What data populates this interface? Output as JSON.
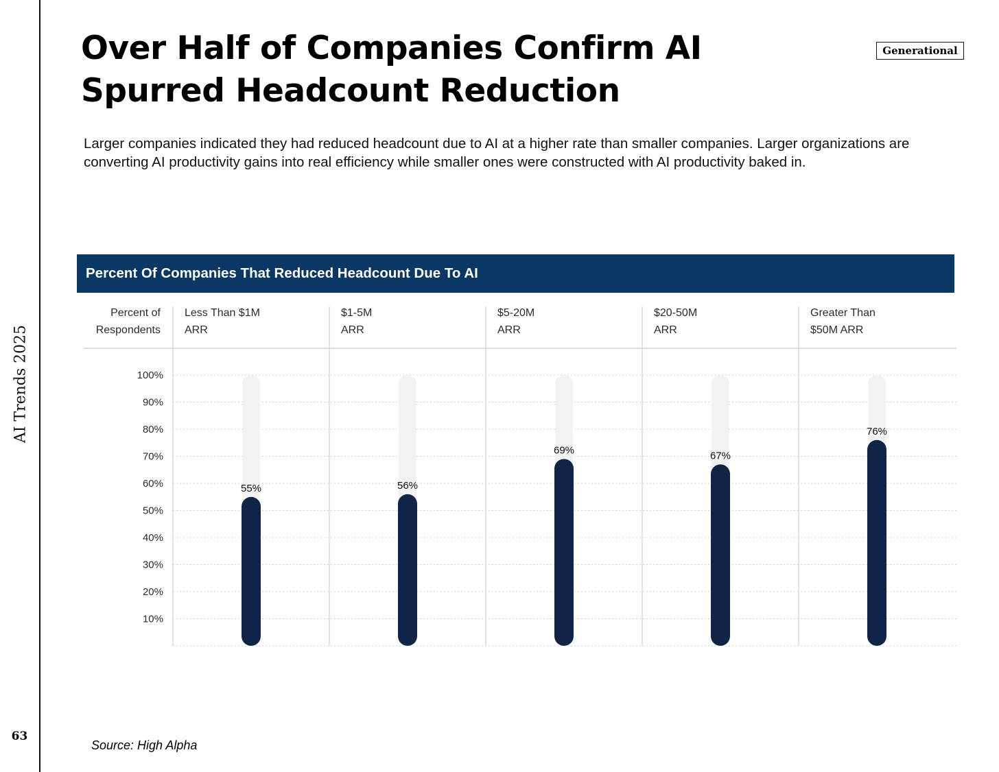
{
  "sidebar": {
    "label": "AI Trends 2025",
    "page_number": "63"
  },
  "badge": "Generational",
  "title": "Over Half of Companies Confirm AI Spurred Headcount Reduction",
  "subtitle": "Larger companies indicated they had reduced headcount due to AI at a higher rate than smaller companies. Larger organizations are converting AI productivity gains into real efficiency while smaller ones were constructed with AI productivity baked in.",
  "chart_header": "Percent Of Companies That Reduced Headcount Due To AI",
  "source": "Source: High Alpha",
  "colors": {
    "banner": "#0a3763",
    "bar": "#0f2447",
    "track": "#f2f2f2",
    "grid": "#cfcfcf"
  },
  "chart_data": {
    "type": "bar",
    "title": "Percent Of Companies That Reduced Headcount Due To AI",
    "y_header": [
      "Percent of",
      "Respondents"
    ],
    "categories": [
      [
        "Less Than $1M",
        "ARR"
      ],
      [
        "$1-5M",
        "ARR"
      ],
      [
        "$5-20M",
        "ARR"
      ],
      [
        "$20-50M",
        "ARR"
      ],
      [
        "Greater Than",
        "$50M ARR"
      ]
    ],
    "values": [
      55,
      56,
      69,
      67,
      76
    ],
    "data_labels": [
      "55%",
      "56%",
      "69%",
      "67%",
      "76%"
    ],
    "ylim": [
      0,
      100
    ],
    "yticks": [
      "10%",
      "20%",
      "30%",
      "40%",
      "50%",
      "60%",
      "70%",
      "80%",
      "90%",
      "100%"
    ],
    "grid": true
  }
}
